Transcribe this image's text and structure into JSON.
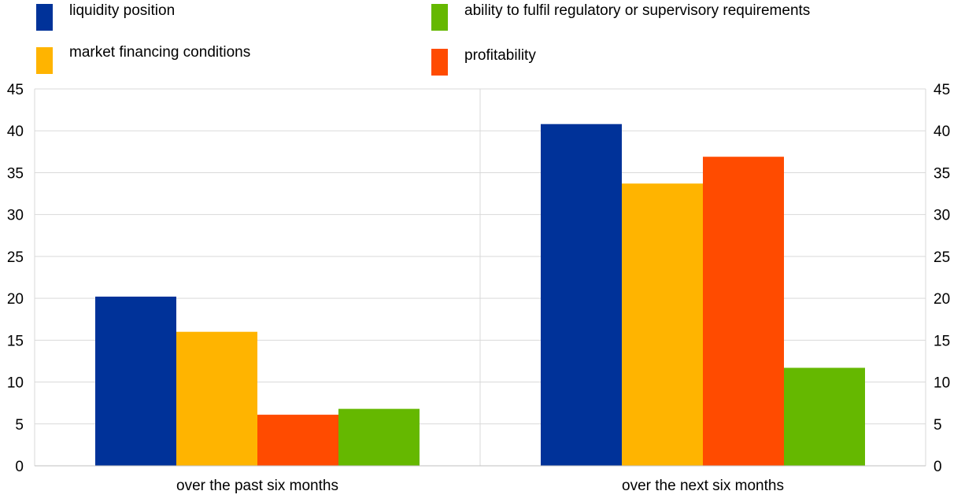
{
  "legend": [
    {
      "label": "liquidity position",
      "color": "#003299"
    },
    {
      "label": "ability to fulfil regulatory or supervisory requirements",
      "color": "#65b800"
    },
    {
      "label": "market financing conditions",
      "color": "#ffb400"
    },
    {
      "label": "profitability",
      "color": "#ff4b00"
    }
  ],
  "chart_data": {
    "type": "bar",
    "categories": [
      "over the past six months",
      "over the next six months"
    ],
    "series": [
      {
        "name": "liquidity position",
        "color": "#003299",
        "values": [
          20.2,
          40.8
        ]
      },
      {
        "name": "market financing conditions",
        "color": "#ffb400",
        "values": [
          16.0,
          33.7
        ]
      },
      {
        "name": "profitability",
        "color": "#ff4b00",
        "values": [
          6.1,
          36.9
        ]
      },
      {
        "name": "ability to fulfil regulatory or supervisory requirements",
        "color": "#65b800",
        "values": [
          6.8,
          11.7
        ]
      }
    ],
    "ylim": [
      0,
      45
    ],
    "yticks": [
      "0",
      "5",
      "10",
      "15",
      "20",
      "25",
      "30",
      "35",
      "40",
      "45"
    ],
    "grid": true,
    "secondary_axis": true,
    "legend_position": "top"
  }
}
